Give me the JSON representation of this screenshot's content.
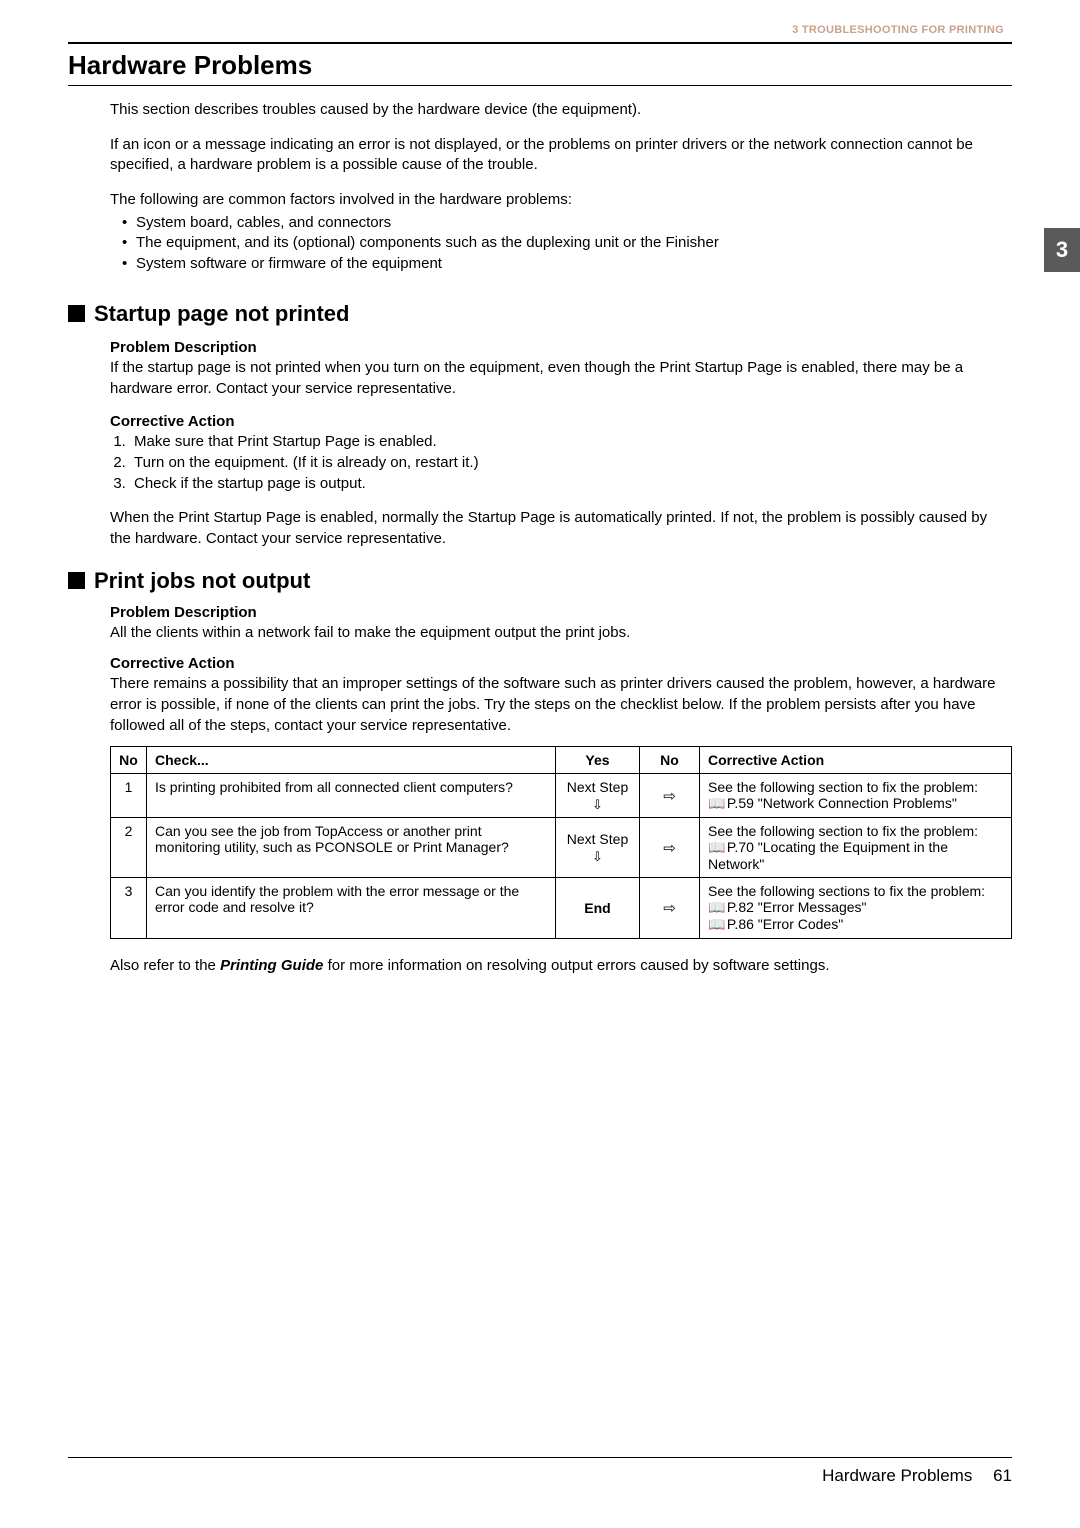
{
  "header": {
    "chapter_label": "3 TROUBLESHOOTING FOR PRINTING",
    "tab_number": "3"
  },
  "title": "Hardware Problems",
  "intro": {
    "p1": "This section describes troubles caused by the hardware device (the equipment).",
    "p2": "If an icon or a message indicating an error is not displayed, or the problems on printer drivers or the network connection cannot be specified, a hardware problem is a possible cause of the trouble.",
    "p3": "The following are common factors involved in the hardware problems:",
    "bullets": [
      "System board, cables, and connectors",
      "The equipment, and its (optional) components such as the duplexing unit or the Finisher",
      "System software or firmware of the equipment"
    ]
  },
  "section1": {
    "heading": "Startup page not printed",
    "pd_label": "Problem Description",
    "pd_text": "If the startup page is not printed when you turn on the equipment, even though the Print Startup Page is enabled, there may be a hardware error. Contact your service representative.",
    "ca_label": "Corrective Action",
    "steps": [
      "Make sure that Print Startup Page is enabled.",
      "Turn on the equipment. (If it is already on, restart it.)",
      "Check if the startup page is output."
    ],
    "note": "When the Print Startup Page is enabled, normally the Startup Page is automatically printed. If not, the problem is possibly caused by the hardware. Contact your service representative."
  },
  "section2": {
    "heading": "Print jobs not output",
    "pd_label": "Problem Description",
    "pd_text": "All the clients within a network fail to make the equipment output the print jobs.",
    "ca_label": "Corrective Action",
    "ca_text": "There remains a possibility that an improper settings of the software such as printer drivers caused the problem, however, a hardware error is possible, if none of the clients can print the jobs. Try the steps on the checklist below. If the problem persists after you have followed all of the steps, contact your service representative.",
    "table": {
      "headers": {
        "no": "No",
        "check": "Check...",
        "yes": "Yes",
        "nocol": "No",
        "action": "Corrective Action"
      },
      "rows": [
        {
          "no": "1",
          "check": "Is printing prohibited from all connected client computers?",
          "yes": "Next Step",
          "yes_end": false,
          "action_lead": "See the following section to fix the problem:",
          "refs": [
            "P.59 \"Network Connection Problems\""
          ]
        },
        {
          "no": "2",
          "check": "Can you see the job from TopAccess or another print monitoring utility, such as PCONSOLE or Print Manager?",
          "yes": "Next Step",
          "yes_end": false,
          "action_lead": "See the following section to fix the problem:",
          "refs": [
            "P.70 \"Locating the Equipment in the Network\""
          ]
        },
        {
          "no": "3",
          "check": "Can you identify the problem with the error message or the error code and resolve it?",
          "yes": "End",
          "yes_end": true,
          "action_lead": "See the following sections to fix the problem:",
          "refs": [
            "P.82 \"Error Messages\"",
            "P.86 \"Error Codes\""
          ]
        }
      ]
    },
    "after_table_pre": "Also refer to the ",
    "after_table_em": "Printing Guide",
    "after_table_post": " for more information on resolving output errors caused by software settings."
  },
  "footer": {
    "label": "Hardware Problems",
    "page": "61"
  },
  "glyphs": {
    "arrow_down": "⇩",
    "arrow_right": "⇨",
    "book": "📖"
  }
}
